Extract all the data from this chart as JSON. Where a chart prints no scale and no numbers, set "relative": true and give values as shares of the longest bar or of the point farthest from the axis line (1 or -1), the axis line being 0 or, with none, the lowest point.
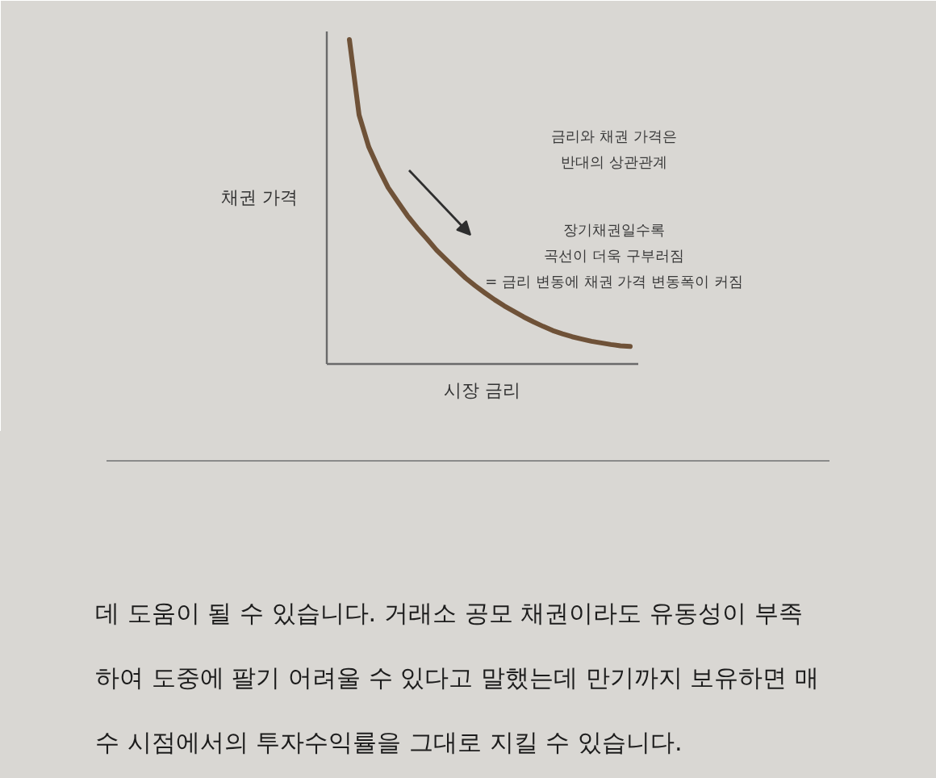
{
  "chart_data": {
    "type": "line",
    "relative": true,
    "xlabel": "시장 금리",
    "ylabel": "채권 가격",
    "categories": [
      null,
      null,
      null,
      null,
      null,
      null,
      null,
      null,
      null,
      null,
      null,
      null,
      null,
      null,
      null,
      null,
      null,
      null,
      null,
      null,
      null,
      null,
      null,
      null,
      null,
      null,
      null,
      null,
      null,
      null
    ],
    "series": [
      {
        "color": "#6f5238",
        "values": [
          1.0,
          0.768,
          0.669,
          0.603,
          0.544,
          0.5,
          0.457,
          0.42,
          0.386,
          0.351,
          0.322,
          0.293,
          0.265,
          0.241,
          0.219,
          0.198,
          0.179,
          0.162,
          0.145,
          0.13,
          0.116,
          0.103,
          0.093,
          0.084,
          0.077,
          0.07,
          0.065,
          0.06,
          0.056,
          0.054
        ]
      }
    ],
    "annotations": [
      "금리와 채권 가격은\n반대의 상관관계",
      "장기채권일수록\n곡선이 더욱 구부러짐\n= 금리 변동에 채권 가격 변동폭이 커짐",
      "데 도움이 될 수 있습니다. 거래소 공모 채권이라도 유동성이 부족",
      "하여 도중에 팔기 어려울 수 있다고 말했는데 만기까지 보유하면 매",
      "수 시점에서의 투자수익률을 그대로 지킬 수 있습니다."
    ]
  }
}
